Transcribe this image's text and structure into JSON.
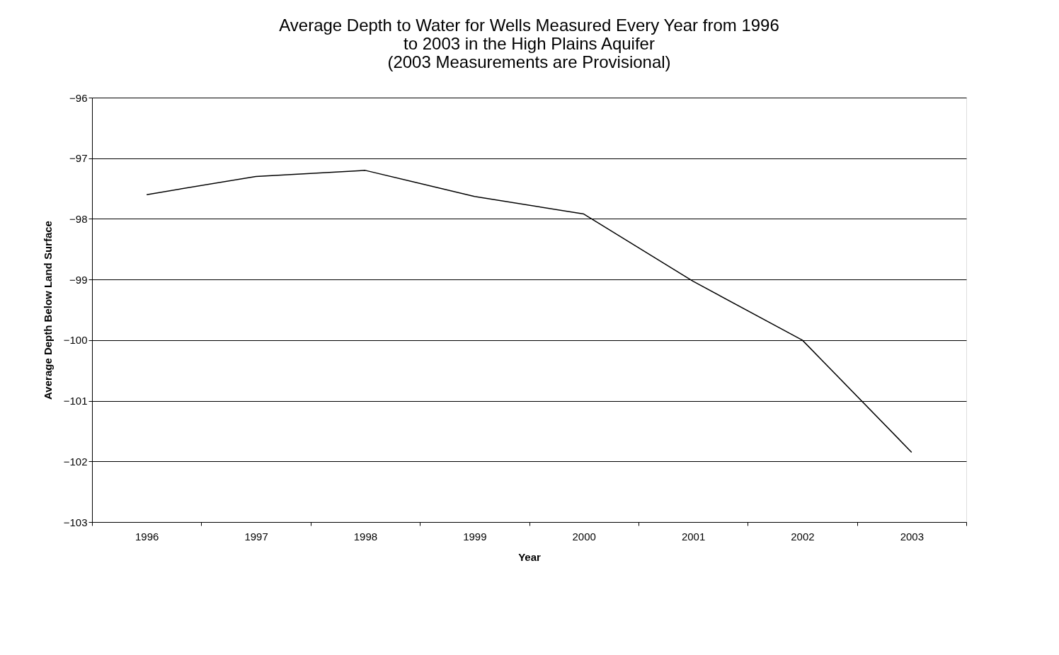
{
  "chart_data": {
    "type": "line",
    "title": [
      "Average Depth to Water for Wells Measured Every Year from 1996",
      "to 2003 in the High Plains Aquifer",
      "(2003 Measurements are Provisional)"
    ],
    "xlabel": "Year",
    "ylabel": "Average Depth Below Land Surface",
    "categories": [
      "1996",
      "1997",
      "1998",
      "1999",
      "2000",
      "2001",
      "2002",
      "2003"
    ],
    "series": [
      {
        "color": "#000000",
        "values": [
          -97.6,
          -97.3,
          -97.2,
          -97.63,
          -97.92,
          -99.03,
          -100.0,
          -101.85
        ]
      }
    ],
    "ylim": [
      -103,
      -96
    ],
    "yticks": [
      -103,
      -102,
      -101,
      -100,
      -99,
      -98,
      -97,
      -96
    ],
    "grid": "y",
    "legend": false,
    "marker": "none",
    "line_style": "solid"
  }
}
